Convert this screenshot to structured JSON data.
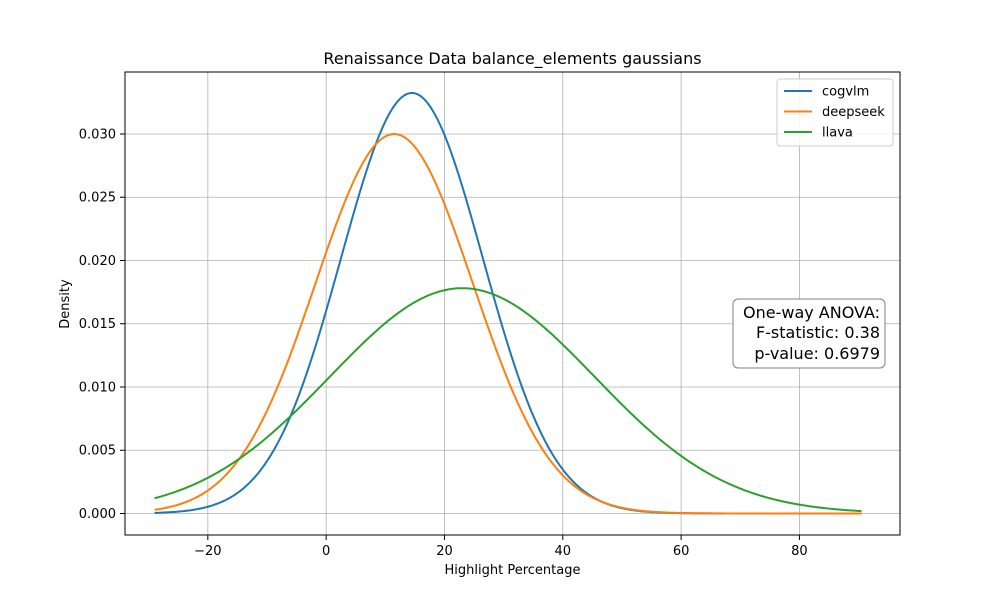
{
  "chart_data": {
    "type": "line",
    "title": "Renaissance Data balance_elements gaussians",
    "xlabel": "Highlight Percentage",
    "ylabel": "Density",
    "xlim": [
      -34,
      97
    ],
    "ylim": [
      -0.0017,
      0.0349
    ],
    "x_ticks": [
      -20,
      0,
      20,
      40,
      60,
      80
    ],
    "x_tick_labels": [
      "−20",
      "0",
      "20",
      "40",
      "60",
      "80"
    ],
    "y_ticks": [
      0.0,
      0.005,
      0.01,
      0.015,
      0.02,
      0.025,
      0.03
    ],
    "y_tick_labels": [
      "0.000",
      "0.005",
      "0.010",
      "0.015",
      "0.020",
      "0.025",
      "0.030"
    ],
    "grid": true,
    "legend_position": "top-right",
    "x_range": [
      -29,
      90.5
    ],
    "series": [
      {
        "name": "cogvlm",
        "color": "#1f77b4",
        "mean": 14.5,
        "std": 12.0
      },
      {
        "name": "deepseek",
        "color": "#ff7f0e",
        "mean": 11.5,
        "std": 13.3
      },
      {
        "name": "llava",
        "color": "#2ca02c",
        "mean": 23.0,
        "std": 22.4
      }
    ],
    "annotation": {
      "lines": [
        "One-way ANOVA:",
        "F-statistic: 0.38",
        "p-value: 0.6979"
      ]
    }
  }
}
